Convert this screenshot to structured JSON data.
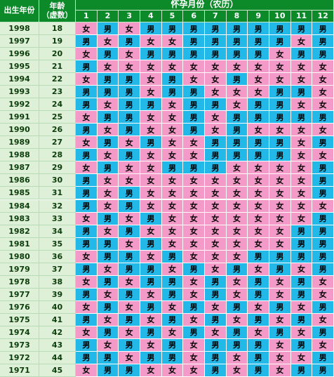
{
  "header": {
    "col_year": "出生年份",
    "col_age_line1": "年龄",
    "col_age_line2": "（虚数）",
    "months_title": "怀孕月份（农历）",
    "months": [
      "1",
      "2",
      "3",
      "4",
      "5",
      "6",
      "7",
      "8",
      "9",
      "10",
      "11",
      "12"
    ]
  },
  "colors": {
    "男": "#22b8e8",
    "女": "#f49ac8"
  },
  "rows": [
    {
      "year": "1998",
      "age": "18",
      "cells": [
        "女",
        "男",
        "女",
        "男",
        "男",
        "男",
        "男",
        "男",
        "男",
        "男",
        "男",
        "男"
      ]
    },
    {
      "year": "1997",
      "age": "19",
      "cells": [
        "男",
        "女",
        "男",
        "女",
        "女",
        "男",
        "男",
        "男",
        "男",
        "男",
        "女",
        "男"
      ]
    },
    {
      "year": "1996",
      "age": "20",
      "cells": [
        "女",
        "男",
        "女",
        "男",
        "男",
        "男",
        "男",
        "男",
        "男",
        "女",
        "男",
        "男"
      ]
    },
    {
      "year": "1995",
      "age": "21",
      "cells": [
        "男",
        "女",
        "女",
        "女",
        "女",
        "女",
        "女",
        "女",
        "女",
        "女",
        "女",
        "女"
      ]
    },
    {
      "year": "1994",
      "age": "22",
      "cells": [
        "女",
        "男",
        "男",
        "女",
        "男",
        "女",
        "女",
        "男",
        "女",
        "女",
        "女",
        "女"
      ]
    },
    {
      "year": "1993",
      "age": "23",
      "cells": [
        "男",
        "男",
        "男",
        "女",
        "男",
        "男",
        "女",
        "女",
        "女",
        "男",
        "男",
        "女"
      ]
    },
    {
      "year": "1992",
      "age": "24",
      "cells": [
        "男",
        "女",
        "男",
        "男",
        "女",
        "男",
        "男",
        "女",
        "男",
        "男",
        "女",
        "女"
      ]
    },
    {
      "year": "1991",
      "age": "25",
      "cells": [
        "女",
        "男",
        "男",
        "女",
        "女",
        "男",
        "女",
        "男",
        "男",
        "男",
        "男",
        "男"
      ]
    },
    {
      "year": "1990",
      "age": "26",
      "cells": [
        "男",
        "女",
        "男",
        "女",
        "女",
        "男",
        "女",
        "男",
        "女",
        "女",
        "女",
        "女"
      ]
    },
    {
      "year": "1989",
      "age": "27",
      "cells": [
        "女",
        "男",
        "女",
        "男",
        "女",
        "女",
        "男",
        "男",
        "男",
        "男",
        "女",
        "男"
      ]
    },
    {
      "year": "1988",
      "age": "28",
      "cells": [
        "男",
        "女",
        "男",
        "女",
        "女",
        "女",
        "男",
        "男",
        "男",
        "男",
        "女",
        "女"
      ]
    },
    {
      "year": "1987",
      "age": "29",
      "cells": [
        "女",
        "男",
        "女",
        "女",
        "男",
        "男",
        "男",
        "女",
        "女",
        "女",
        "女",
        "男"
      ]
    },
    {
      "year": "1986",
      "age": "30",
      "cells": [
        "男",
        "女",
        "女",
        "女",
        "女",
        "女",
        "女",
        "女",
        "女",
        "女",
        "女",
        "男"
      ]
    },
    {
      "year": "1985",
      "age": "31",
      "cells": [
        "男",
        "女",
        "男",
        "女",
        "女",
        "女",
        "女",
        "女",
        "女",
        "女",
        "女",
        "男"
      ]
    },
    {
      "year": "1984",
      "age": "32",
      "cells": [
        "男",
        "女",
        "男",
        "女",
        "女",
        "女",
        "女",
        "女",
        "女",
        "女",
        "女",
        "女"
      ]
    },
    {
      "year": "1983",
      "age": "33",
      "cells": [
        "女",
        "男",
        "女",
        "男",
        "女",
        "女",
        "女",
        "女",
        "女",
        "女",
        "女",
        "男"
      ]
    },
    {
      "year": "1982",
      "age": "34",
      "cells": [
        "男",
        "女",
        "男",
        "女",
        "女",
        "女",
        "女",
        "女",
        "女",
        "女",
        "男",
        "男"
      ]
    },
    {
      "year": "1981",
      "age": "35",
      "cells": [
        "男",
        "男",
        "女",
        "男",
        "女",
        "女",
        "女",
        "女",
        "女",
        "女",
        "男",
        "男"
      ]
    },
    {
      "year": "1980",
      "age": "36",
      "cells": [
        "女",
        "男",
        "男",
        "女",
        "男",
        "女",
        "女",
        "女",
        "男",
        "男",
        "男",
        "男"
      ]
    },
    {
      "year": "1979",
      "age": "37",
      "cells": [
        "男",
        "女",
        "男",
        "男",
        "女",
        "男",
        "女",
        "男",
        "女",
        "男",
        "女",
        "男"
      ]
    },
    {
      "year": "1978",
      "age": "38",
      "cells": [
        "女",
        "男",
        "女",
        "男",
        "男",
        "女",
        "男",
        "女",
        "男",
        "女",
        "男",
        "女"
      ]
    },
    {
      "year": "1977",
      "age": "39",
      "cells": [
        "男",
        "女",
        "男",
        "女",
        "男",
        "女",
        "男",
        "女",
        "男",
        "女",
        "男",
        "女"
      ]
    },
    {
      "year": "1976",
      "age": "40",
      "cells": [
        "女",
        "男",
        "女",
        "男",
        "女",
        "男",
        "女",
        "男",
        "女",
        "男",
        "女",
        "男"
      ]
    },
    {
      "year": "1975",
      "age": "41",
      "cells": [
        "男",
        "女",
        "男",
        "女",
        "男",
        "女",
        "男",
        "女",
        "男",
        "女",
        "男",
        "女"
      ]
    },
    {
      "year": "1974",
      "age": "42",
      "cells": [
        "女",
        "男",
        "女",
        "男",
        "女",
        "男",
        "女",
        "男",
        "女",
        "男",
        "女",
        "男"
      ]
    },
    {
      "year": "1973",
      "age": "43",
      "cells": [
        "男",
        "女",
        "男",
        "女",
        "男",
        "女",
        "男",
        "男",
        "男",
        "女",
        "男",
        "女"
      ]
    },
    {
      "year": "1972",
      "age": "44",
      "cells": [
        "男",
        "男",
        "女",
        "男",
        "男",
        "女",
        "男",
        "女",
        "男",
        "女",
        "女",
        "男"
      ]
    },
    {
      "year": "1971",
      "age": "45",
      "cells": [
        "女",
        "男",
        "男",
        "女",
        "女",
        "女",
        "男",
        "女",
        "男",
        "女",
        "男",
        "男"
      ]
    }
  ]
}
